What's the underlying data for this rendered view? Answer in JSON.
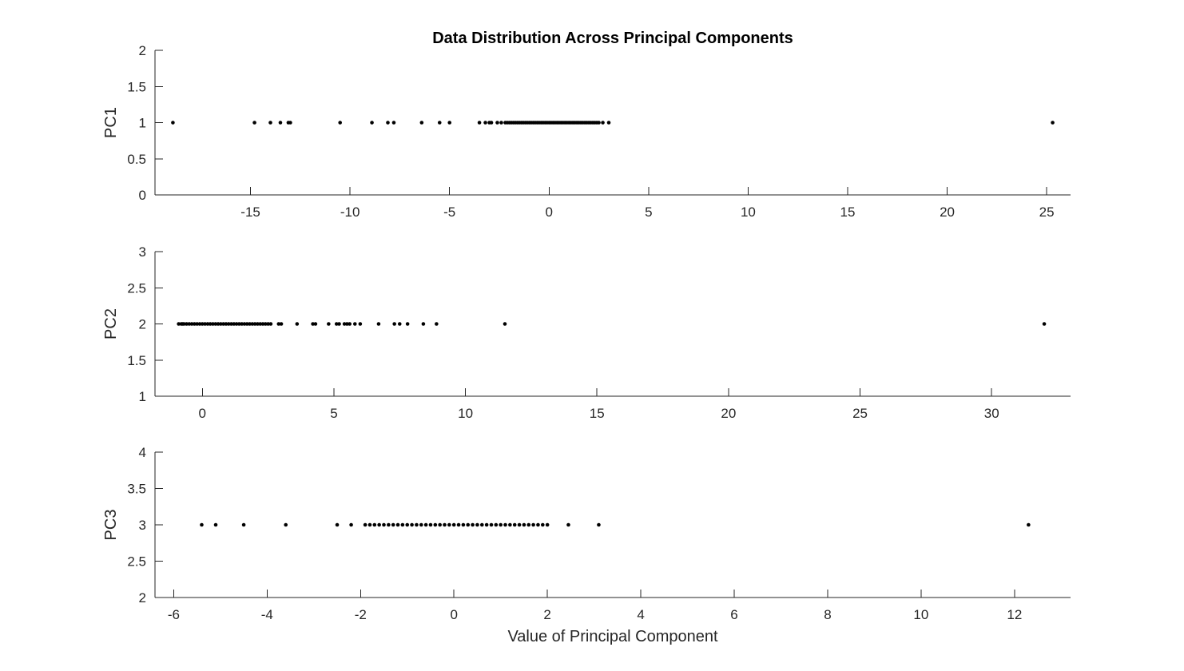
{
  "title": "Data Distribution Across Principal Components",
  "xlabel": "Value of Principal Component",
  "colors": {
    "marker": "#000000",
    "axis": "#262626",
    "background": "#ffffff"
  },
  "chart_data": [
    {
      "type": "scatter",
      "ylabel": "PC1",
      "xlim": [
        -19.8,
        26.2
      ],
      "ylim": [
        0,
        2
      ],
      "xticks": [
        -15,
        -10,
        -5,
        0,
        5,
        10,
        15,
        20,
        25
      ],
      "yticks": [
        0,
        0.5,
        1,
        1.5,
        2
      ],
      "xtick_labels": [
        "-15",
        "-10",
        "-5",
        "0",
        "5",
        "10",
        "15",
        "20",
        "25"
      ],
      "ytick_labels": [
        "0",
        "0.5",
        "1",
        "1.5",
        "2"
      ],
      "y": 1,
      "x": [
        -18.9,
        -14.8,
        -14.0,
        -13.5,
        -13.1,
        -13.0,
        -10.5,
        -8.9,
        -8.1,
        -7.8,
        -6.4,
        -5.5,
        -5.0,
        -3.5,
        -3.2,
        -3.0,
        -2.9,
        -2.6,
        -2.4,
        -2.2,
        -2.1,
        -2.0,
        -1.9,
        -1.8,
        -1.7,
        -1.6,
        -1.5,
        -1.4,
        -1.3,
        -1.2,
        -1.1,
        -1.0,
        -0.9,
        -0.8,
        -0.7,
        -0.6,
        -0.5,
        -0.4,
        -0.3,
        -0.2,
        -0.1,
        0.0,
        0.1,
        0.2,
        0.3,
        0.4,
        0.5,
        0.6,
        0.7,
        0.8,
        0.9,
        1.0,
        1.1,
        1.2,
        1.3,
        1.4,
        1.5,
        1.6,
        1.7,
        1.8,
        1.9,
        2.0,
        2.1,
        2.2,
        2.3,
        2.4,
        2.5,
        2.7,
        3.0,
        25.3
      ]
    },
    {
      "type": "scatter",
      "ylabel": "PC2",
      "xlim": [
        -1.8,
        33.0
      ],
      "ylim": [
        1,
        3
      ],
      "xticks": [
        0,
        5,
        10,
        15,
        20,
        25,
        30
      ],
      "yticks": [
        1,
        1.5,
        2,
        2.5,
        3
      ],
      "xtick_labels": [
        "0",
        "5",
        "10",
        "15",
        "20",
        "25",
        "30"
      ],
      "ytick_labels": [
        "1",
        "1.5",
        "2",
        "2.5",
        "3"
      ],
      "y": 2,
      "x": [
        -0.9,
        -0.8,
        -0.75,
        -0.7,
        -0.6,
        -0.5,
        -0.4,
        -0.3,
        -0.2,
        -0.1,
        0.0,
        0.1,
        0.2,
        0.3,
        0.4,
        0.5,
        0.6,
        0.7,
        0.8,
        0.9,
        1.0,
        1.1,
        1.2,
        1.3,
        1.4,
        1.5,
        1.6,
        1.7,
        1.8,
        1.9,
        2.0,
        2.1,
        2.2,
        2.3,
        2.4,
        2.5,
        2.6,
        2.9,
        3.0,
        3.6,
        4.2,
        4.3,
        4.8,
        5.1,
        5.2,
        5.4,
        5.5,
        5.6,
        5.8,
        6.0,
        6.7,
        7.3,
        7.5,
        7.8,
        8.4,
        8.9,
        11.5,
        32.0
      ]
    },
    {
      "type": "scatter",
      "ylabel": "PC3",
      "xlim": [
        -6.4,
        13.2
      ],
      "ylim": [
        2,
        4
      ],
      "xticks": [
        -6,
        -4,
        -2,
        0,
        2,
        4,
        6,
        8,
        10,
        12
      ],
      "yticks": [
        2,
        2.5,
        3,
        3.5,
        4
      ],
      "xtick_labels": [
        "-6",
        "-4",
        "-2",
        "0",
        "2",
        "4",
        "6",
        "8",
        "10",
        "12"
      ],
      "ytick_labels": [
        "2",
        "2.5",
        "3",
        "3.5",
        "4"
      ],
      "y": 3,
      "x": [
        -5.4,
        -5.1,
        -4.5,
        -3.6,
        -2.5,
        -2.2,
        -1.9,
        -1.8,
        -1.7,
        -1.6,
        -1.5,
        -1.4,
        -1.3,
        -1.2,
        -1.1,
        -1.0,
        -0.9,
        -0.8,
        -0.7,
        -0.6,
        -0.5,
        -0.4,
        -0.3,
        -0.2,
        -0.1,
        0.0,
        0.1,
        0.2,
        0.3,
        0.4,
        0.5,
        0.6,
        0.7,
        0.8,
        0.9,
        1.0,
        1.1,
        1.2,
        1.3,
        1.4,
        1.5,
        1.6,
        1.7,
        1.8,
        1.9,
        2.0,
        2.45,
        3.1,
        12.3
      ]
    }
  ]
}
